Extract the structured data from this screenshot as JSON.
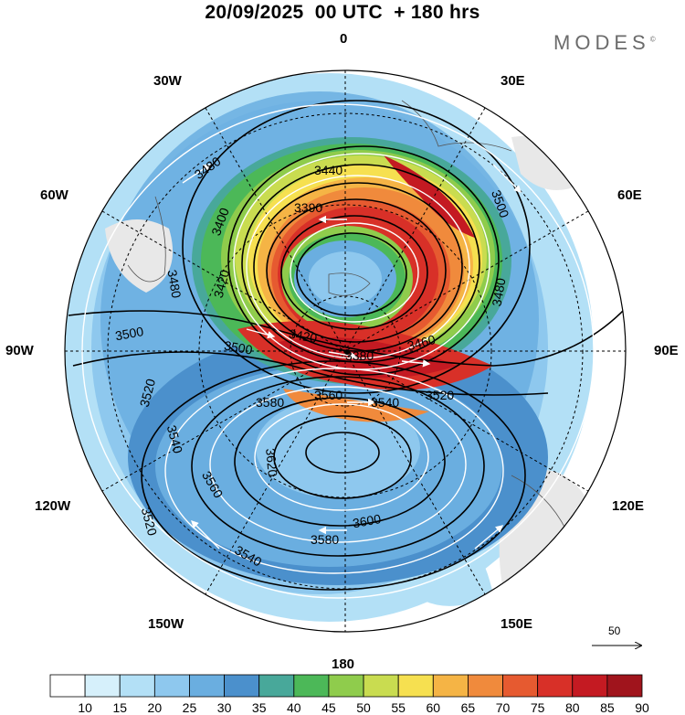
{
  "title": "20/09/2025  00 UTC  + 180 hrs",
  "brand": "MODES",
  "brand_mark": "©",
  "longitude_labels": {
    "lon_0": "0",
    "lon_30e": "30E",
    "lon_60e": "60E",
    "lon_90e": "90E",
    "lon_120e": "120E",
    "lon_150e": "150E",
    "lon_180": "180",
    "lon_150w": "150W",
    "lon_120w": "120W",
    "lon_90w": "90W",
    "lon_60w": "60W",
    "lon_30w": "30W"
  },
  "contours": {
    "c3440": "3440",
    "c3390": "3390",
    "c3400": "3400",
    "c3420": "3420",
    "c3480a": "3480",
    "c3480b": "3480",
    "c3480c": "3480",
    "c3500a": "3500",
    "c3500b": "3500",
    "c3500c": "3500",
    "c3520a": "3520",
    "c3520b": "3520",
    "c3520c": "3520",
    "c3540a": "3540",
    "c3540b": "3540",
    "c3540c": "3540",
    "c3560a": "3560",
    "c3560b": "3560",
    "c3580a": "3580",
    "c3580b": "3580",
    "c3600a": "3600",
    "c3620": "3620",
    "c3380": "3380",
    "c3420b": "3420",
    "c3460": "3460"
  },
  "colorbar": {
    "levels": [
      "10",
      "15",
      "20",
      "25",
      "30",
      "35",
      "40",
      "45",
      "50",
      "55",
      "60",
      "65",
      "70",
      "75",
      "80",
      "85",
      "90"
    ],
    "colors": [
      "#ffffff",
      "#d6f0fb",
      "#b3e0f6",
      "#8ec8ee",
      "#6aaee0",
      "#4b90cc",
      "#48a89a",
      "#4cb858",
      "#8fcc4c",
      "#c9dc50",
      "#f6e050",
      "#f5b445",
      "#f08a3c",
      "#e65a30",
      "#d83028",
      "#c41a22",
      "#a0141c"
    ]
  },
  "reference_vector": "50"
}
